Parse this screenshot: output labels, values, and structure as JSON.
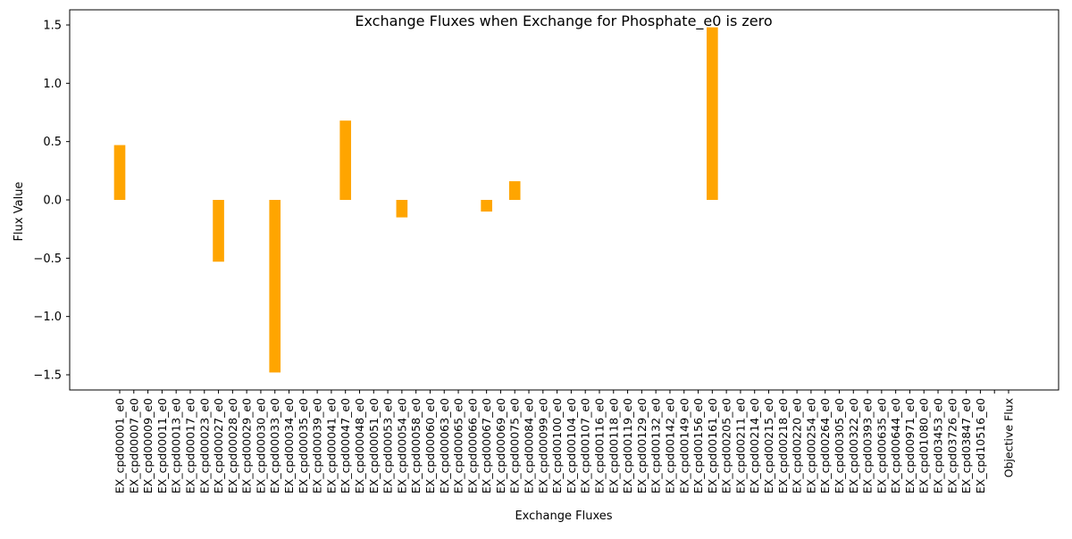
{
  "chart_data": {
    "type": "bar",
    "title": "Exchange Fluxes when Exchange for Phosphate_e0 is zero",
    "xlabel": "Exchange Fluxes",
    "ylabel": "Flux Value",
    "ylim": [
      -1.63,
      1.63
    ],
    "yticks": [
      -1.5,
      -1.0,
      -0.5,
      0.0,
      0.5,
      1.0,
      1.5
    ],
    "ytick_labels": [
      "−1.5",
      "−1.0",
      "−0.5",
      "0.0",
      "0.5",
      "1.0",
      "1.5"
    ],
    "grid": false,
    "bar_color": "#FFA500",
    "categories": [
      "EX_cpd00001_e0",
      "EX_cpd00007_e0",
      "EX_cpd00009_e0",
      "EX_cpd00011_e0",
      "EX_cpd00013_e0",
      "EX_cpd00017_e0",
      "EX_cpd00023_e0",
      "EX_cpd00027_e0",
      "EX_cpd00028_e0",
      "EX_cpd00029_e0",
      "EX_cpd00030_e0",
      "EX_cpd00033_e0",
      "EX_cpd00034_e0",
      "EX_cpd00035_e0",
      "EX_cpd00039_e0",
      "EX_cpd00041_e0",
      "EX_cpd00047_e0",
      "EX_cpd00048_e0",
      "EX_cpd00051_e0",
      "EX_cpd00053_e0",
      "EX_cpd00054_e0",
      "EX_cpd00058_e0",
      "EX_cpd00060_e0",
      "EX_cpd00063_e0",
      "EX_cpd00065_e0",
      "EX_cpd00066_e0",
      "EX_cpd00067_e0",
      "EX_cpd00069_e0",
      "EX_cpd00075_e0",
      "EX_cpd00084_e0",
      "EX_cpd00099_e0",
      "EX_cpd00100_e0",
      "EX_cpd00104_e0",
      "EX_cpd00107_e0",
      "EX_cpd00116_e0",
      "EX_cpd00118_e0",
      "EX_cpd00119_e0",
      "EX_cpd00129_e0",
      "EX_cpd00132_e0",
      "EX_cpd00142_e0",
      "EX_cpd00149_e0",
      "EX_cpd00156_e0",
      "EX_cpd00161_e0",
      "EX_cpd00205_e0",
      "EX_cpd00211_e0",
      "EX_cpd00214_e0",
      "EX_cpd00215_e0",
      "EX_cpd00218_e0",
      "EX_cpd00220_e0",
      "EX_cpd00254_e0",
      "EX_cpd00264_e0",
      "EX_cpd00305_e0",
      "EX_cpd00322_e0",
      "EX_cpd00393_e0",
      "EX_cpd00635_e0",
      "EX_cpd00644_e0",
      "EX_cpd00971_e0",
      "EX_cpd01080_e0",
      "EX_cpd03453_e0",
      "EX_cpd03726_e0",
      "EX_cpd03847_e0",
      "EX_cpd10516_e0",
      "",
      "Objective Flux"
    ],
    "values": [
      0.47,
      0,
      0,
      0,
      0,
      0,
      0,
      -0.53,
      0,
      0,
      0,
      -1.48,
      0,
      0,
      0,
      0,
      0.68,
      0,
      0,
      0,
      -0.15,
      0,
      0,
      0,
      0,
      0,
      -0.1,
      0,
      0.16,
      0,
      0,
      0,
      0,
      0,
      0,
      0,
      0,
      0,
      0,
      0,
      0,
      0,
      1.48,
      0,
      0,
      0,
      0,
      0,
      0,
      0,
      0,
      0,
      0,
      0,
      0,
      0,
      0,
      0,
      0,
      0,
      0,
      0,
      0,
      0
    ]
  }
}
